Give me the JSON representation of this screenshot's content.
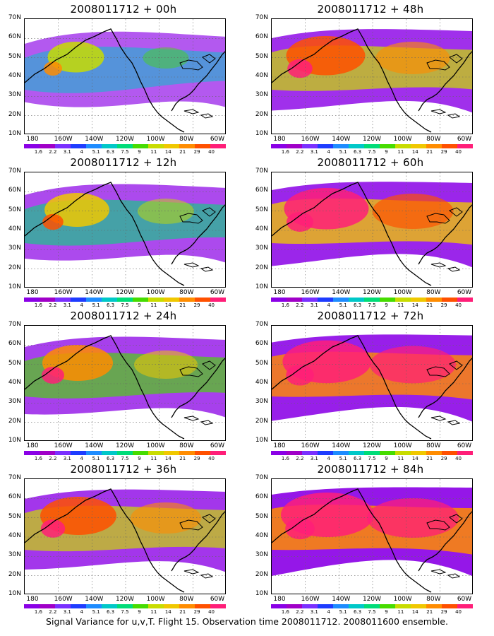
{
  "panels": [
    {
      "title": "2008011712 + 00h",
      "intensity": 0.25
    },
    {
      "title": "2008011712 + 48h",
      "intensity": 0.65
    },
    {
      "title": "2008011712 + 12h",
      "intensity": 0.4
    },
    {
      "title": "2008011712 + 60h",
      "intensity": 0.75
    },
    {
      "title": "2008011712 + 24h",
      "intensity": 0.5
    },
    {
      "title": "2008011712 + 72h",
      "intensity": 0.82
    },
    {
      "title": "2008011712 + 36h",
      "intensity": 0.6
    },
    {
      "title": "2008011712 + 84h",
      "intensity": 0.9
    }
  ],
  "lat_labels": [
    "70N",
    "60N",
    "50N",
    "40N",
    "30N",
    "20N",
    "10N"
  ],
  "lon_labels": [
    "180",
    "160W",
    "140W",
    "120W",
    "100W",
    "80W",
    "60W"
  ],
  "colorbar": {
    "colors": [
      "#8a00e6",
      "#a000c8",
      "#7a30ff",
      "#1e3cff",
      "#1e8cff",
      "#00c8c8",
      "#00dc78",
      "#46dc00",
      "#c8dc00",
      "#f0c800",
      "#ff8c00",
      "#ff5000",
      "#ff1e78"
    ],
    "labels": [
      "1.6",
      "2.2",
      "3.1",
      "4",
      "5.1",
      "6.3",
      "7.5",
      "9",
      "11",
      "14",
      "21",
      "29",
      "40"
    ]
  },
  "caption": "Signal Variance for u,v,T. Flight 15. Observation time 2008011712. 2008011600 ensemble."
}
